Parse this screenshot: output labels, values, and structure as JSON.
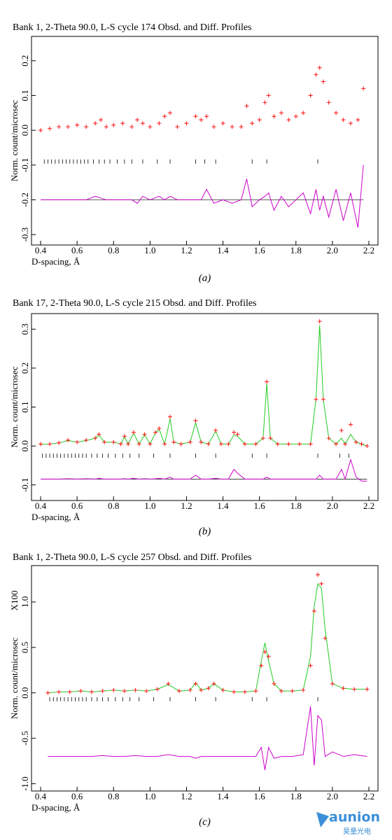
{
  "chart_data": [
    {
      "type": "line",
      "title": "Bank  1, 2-Theta    90.0, L-S cycle  174 Obsd. and Diff. Profiles",
      "xlabel": "D-spacing, Å",
      "ylabel": "Norm. count/microsec",
      "caption": "(a)",
      "xlim": [
        0.35,
        2.25
      ],
      "xticks": [
        0.4,
        0.6,
        0.8,
        {
          "value": 1,
          "label": "1.0"
        },
        1.2,
        1.4,
        1.6,
        1.8,
        {
          "value": 2,
          "label": "2.0"
        },
        2.2
      ],
      "ylim": [
        -0.33,
        0.27
      ],
      "yticks": [
        -0.3,
        -0.2,
        -0.1,
        {
          "value": 0,
          "label": "0.0"
        },
        0.1,
        0.2
      ],
      "x": [
        0.4,
        0.45,
        0.5,
        0.55,
        0.6,
        0.65,
        0.7,
        0.73,
        0.76,
        0.8,
        0.85,
        0.9,
        0.93,
        0.96,
        1.0,
        1.05,
        1.08,
        1.11,
        1.15,
        1.2,
        1.25,
        1.28,
        1.31,
        1.35,
        1.4,
        1.45,
        1.5,
        1.53,
        1.56,
        1.6,
        1.63,
        1.65,
        1.68,
        1.72,
        1.76,
        1.8,
        1.84,
        1.88,
        1.91,
        1.93,
        1.95,
        1.98,
        2.02,
        2.06,
        2.1,
        2.14,
        2.17
      ],
      "series": [
        {
          "style": "markers",
          "color": "#ff2020",
          "values": [
            0.0,
            0.005,
            0.01,
            0.01,
            0.015,
            0.01,
            0.02,
            0.03,
            0.01,
            0.015,
            0.02,
            0.01,
            0.03,
            0.02,
            0.01,
            0.02,
            0.04,
            0.05,
            0.01,
            0.02,
            0.04,
            0.03,
            0.04,
            0.01,
            0.02,
            0.01,
            0.01,
            0.07,
            0.02,
            0.03,
            0.08,
            0.1,
            0.04,
            0.05,
            0.03,
            0.04,
            0.05,
            0.1,
            0.16,
            0.18,
            0.14,
            0.08,
            0.05,
            0.03,
            0.02,
            0.03,
            0.12
          ]
        },
        {
          "style": "line",
          "color": "#cc00cc",
          "values": [
            -0.2,
            -0.2,
            -0.2,
            -0.2,
            -0.2,
            -0.2,
            -0.19,
            -0.195,
            -0.2,
            -0.2,
            -0.2,
            -0.2,
            -0.21,
            -0.19,
            -0.2,
            -0.19,
            -0.2,
            -0.19,
            -0.2,
            -0.2,
            -0.2,
            -0.2,
            -0.17,
            -0.21,
            -0.2,
            -0.21,
            -0.2,
            -0.14,
            -0.22,
            -0.2,
            -0.19,
            -0.18,
            -0.23,
            -0.19,
            -0.22,
            -0.2,
            -0.18,
            -0.24,
            -0.17,
            -0.23,
            -0.19,
            -0.25,
            -0.17,
            -0.26,
            -0.18,
            -0.28,
            -0.1
          ]
        }
      ],
      "reflection_y": -0.09,
      "reflections": [
        0.42,
        0.44,
        0.46,
        0.48,
        0.5,
        0.52,
        0.54,
        0.56,
        0.58,
        0.6,
        0.62,
        0.64,
        0.66,
        0.69,
        0.72,
        0.75,
        0.78,
        0.82,
        0.86,
        0.9,
        0.96,
        1.04,
        1.11,
        1.25,
        1.3,
        1.36,
        1.56,
        1.64,
        1.92
      ],
      "diff_baseline": -0.2
    },
    {
      "type": "line",
      "title": "Bank 17, 2-Theta    90.0, L-S cycle  215 Obsd. and Diff. Profiles",
      "xlabel": "D-spacing, Å",
      "ylabel": "Norm. count/microsec",
      "caption": "(b)",
      "xlim": [
        0.35,
        2.25
      ],
      "xticks": [
        0.4,
        0.6,
        0.8,
        {
          "value": 1,
          "label": "1.0"
        },
        1.2,
        1.4,
        1.6,
        1.8,
        {
          "value": 2,
          "label": "2.0"
        },
        2.2
      ],
      "ylim": [
        -0.14,
        0.34
      ],
      "yticks": [
        -0.1,
        {
          "value": 0,
          "label": "0.0"
        },
        0.1,
        0.2,
        0.3
      ],
      "x": [
        0.4,
        0.45,
        0.5,
        0.55,
        0.6,
        0.65,
        0.7,
        0.72,
        0.75,
        0.8,
        0.84,
        0.86,
        0.88,
        0.91,
        0.94,
        0.97,
        1.0,
        1.03,
        1.05,
        1.08,
        1.11,
        1.13,
        1.17,
        1.22,
        1.25,
        1.28,
        1.32,
        1.36,
        1.39,
        1.43,
        1.46,
        1.48,
        1.52,
        1.58,
        1.62,
        1.64,
        1.66,
        1.7,
        1.76,
        1.82,
        1.88,
        1.91,
        1.93,
        1.95,
        1.98,
        2.02,
        2.05,
        2.07,
        2.1,
        2.13,
        2.16,
        2.19
      ],
      "series": [
        {
          "style": "line",
          "color": "#22cc22",
          "values": [
            0.004,
            0.005,
            0.008,
            0.014,
            0.01,
            0.014,
            0.02,
            0.028,
            0.01,
            0.01,
            0.005,
            0.024,
            0.005,
            0.033,
            0.005,
            0.029,
            0.005,
            0.034,
            0.043,
            0.005,
            0.07,
            0.01,
            0.005,
            0.01,
            0.06,
            0.01,
            0.005,
            0.038,
            0.005,
            0.005,
            0.028,
            0.025,
            0.005,
            0.005,
            0.02,
            0.16,
            0.02,
            0.005,
            0.005,
            0.005,
            0.005,
            0.12,
            0.31,
            0.12,
            0.02,
            0.005,
            0.02,
            0.005,
            0.03,
            0.01,
            0.005,
            0.0
          ]
        },
        {
          "style": "markers",
          "color": "#ff2020",
          "values": [
            0.005,
            0.005,
            0.008,
            0.015,
            0.01,
            0.015,
            0.02,
            0.03,
            0.01,
            0.01,
            0.005,
            0.025,
            0.005,
            0.035,
            0.005,
            0.03,
            0.005,
            0.035,
            0.045,
            0.005,
            0.075,
            0.01,
            0.005,
            0.01,
            0.065,
            0.01,
            0.005,
            0.04,
            0.005,
            0.005,
            0.035,
            0.03,
            0.005,
            0.005,
            0.02,
            0.165,
            0.02,
            0.005,
            0.005,
            0.005,
            0.005,
            0.12,
            0.32,
            0.12,
            0.02,
            0.005,
            0.04,
            0.005,
            0.055,
            0.01,
            0.005,
            0.0
          ]
        },
        {
          "style": "line",
          "color": "#cc00cc",
          "values": [
            -0.085,
            -0.085,
            -0.085,
            -0.084,
            -0.085,
            -0.084,
            -0.085,
            -0.083,
            -0.085,
            -0.085,
            -0.085,
            -0.084,
            -0.085,
            -0.083,
            -0.085,
            -0.084,
            -0.085,
            -0.084,
            -0.083,
            -0.085,
            -0.08,
            -0.085,
            -0.085,
            -0.085,
            -0.075,
            -0.085,
            -0.085,
            -0.083,
            -0.085,
            -0.085,
            -0.06,
            -0.07,
            -0.085,
            -0.085,
            -0.085,
            -0.08,
            -0.085,
            -0.085,
            -0.085,
            -0.085,
            -0.085,
            -0.085,
            -0.075,
            -0.085,
            -0.085,
            -0.085,
            -0.06,
            -0.085,
            -0.035,
            -0.08,
            -0.09,
            -0.09
          ]
        }
      ],
      "reflection_y": -0.025,
      "reflections": [
        0.41,
        0.43,
        0.45,
        0.47,
        0.49,
        0.51,
        0.53,
        0.55,
        0.57,
        0.59,
        0.61,
        0.63,
        0.65,
        0.68,
        0.71,
        0.74,
        0.77,
        0.81,
        0.85,
        0.89,
        0.94,
        1.02,
        1.11,
        1.25,
        1.36,
        1.56,
        1.64,
        1.92,
        2.04,
        2.09
      ],
      "diff_baseline": -0.085
    },
    {
      "type": "line",
      "title": "Bank  1, 2-Theta    90.0, L-S cycle  257 Obsd. and Diff. Profiles",
      "xlabel": "D-spacing, Å",
      "ylabel": "Norm. count/microsec",
      "caption": "(c)",
      "annotation": "X100",
      "xlim": [
        0.35,
        2.25
      ],
      "xticks": [
        0.4,
        0.6,
        0.8,
        {
          "value": 1,
          "label": "1.0"
        },
        1.2,
        1.4,
        1.6,
        1.8,
        {
          "value": 2,
          "label": "2.0"
        },
        2.2
      ],
      "ylim": [
        -1.08,
        1.4
      ],
      "yticks": [
        {
          "value": -1,
          "label": "-1.0"
        },
        -0.5,
        {
          "value": 0,
          "label": "0.0"
        },
        0.5,
        {
          "value": 1,
          "label": "1.0"
        }
      ],
      "x": [
        0.44,
        0.5,
        0.56,
        0.62,
        0.68,
        0.74,
        0.8,
        0.86,
        0.92,
        0.98,
        1.04,
        1.1,
        1.16,
        1.22,
        1.25,
        1.28,
        1.32,
        1.35,
        1.4,
        1.46,
        1.52,
        1.58,
        1.61,
        1.63,
        1.65,
        1.68,
        1.72,
        1.78,
        1.84,
        1.88,
        1.9,
        1.92,
        1.94,
        1.96,
        2.0,
        2.06,
        2.12,
        2.19
      ],
      "series": [
        {
          "style": "line",
          "color": "#22cc22",
          "values": [
            0,
            0.01,
            0.01,
            0.02,
            0.01,
            0.02,
            0.03,
            0.02,
            0.03,
            0.02,
            0.04,
            0.09,
            0.02,
            0.03,
            0.11,
            0.03,
            0.05,
            0.1,
            0.03,
            0.01,
            0.01,
            0.02,
            0.35,
            0.55,
            0.35,
            0.1,
            0.02,
            0.02,
            0.03,
            0.4,
            0.95,
            1.2,
            1.15,
            0.7,
            0.1,
            0.05,
            0.04,
            0.04
          ]
        },
        {
          "style": "markers",
          "color": "#ff2020",
          "values": [
            0,
            0.01,
            0.01,
            0.02,
            0.01,
            0.02,
            0.03,
            0.02,
            0.03,
            0.02,
            0.04,
            0.1,
            0.02,
            0.03,
            0.1,
            0.03,
            0.05,
            0.1,
            0.03,
            0.01,
            0.01,
            0.02,
            0.3,
            0.45,
            0.4,
            0.1,
            0.02,
            0.02,
            0.03,
            0.3,
            0.9,
            1.3,
            1.2,
            0.6,
            0.1,
            0.05,
            0.04,
            0.04
          ]
        },
        {
          "style": "line",
          "color": "#cc00cc",
          "values": [
            -0.7,
            -0.7,
            -0.7,
            -0.7,
            -0.7,
            -0.69,
            -0.7,
            -0.7,
            -0.69,
            -0.7,
            -0.7,
            -0.68,
            -0.7,
            -0.7,
            -0.72,
            -0.7,
            -0.7,
            -0.7,
            -0.7,
            -0.7,
            -0.7,
            -0.7,
            -0.6,
            -0.85,
            -0.6,
            -0.72,
            -0.7,
            -0.7,
            -0.68,
            -0.15,
            -0.8,
            -0.25,
            -0.3,
            -0.7,
            -0.65,
            -0.7,
            -0.68,
            -0.7
          ]
        }
      ],
      "reflection_y": -0.07,
      "reflections": [
        0.45,
        0.47,
        0.49,
        0.51,
        0.53,
        0.55,
        0.57,
        0.59,
        0.61,
        0.63,
        0.65,
        0.68,
        0.71,
        0.74,
        0.77,
        0.81,
        0.85,
        0.89,
        0.94,
        1.02,
        1.11,
        1.25,
        1.36,
        1.56,
        1.64,
        1.92
      ]
    }
  ],
  "watermark": {
    "brand": "aunion",
    "subtitle": "昊量光电"
  }
}
